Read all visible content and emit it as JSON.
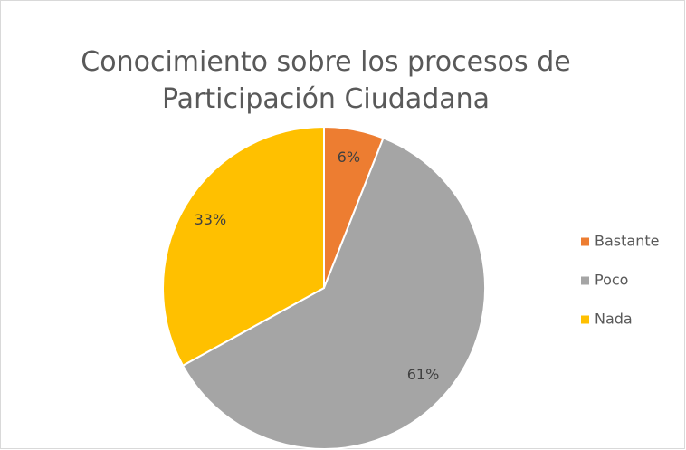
{
  "chart_data": {
    "type": "pie",
    "title": "Conocimiento sobre los procesos de Participación Ciudadana",
    "categories": [
      "Bastante",
      "Poco",
      "Nada"
    ],
    "values": [
      6,
      61,
      33
    ],
    "value_labels": [
      "6%",
      "61%",
      "33%"
    ],
    "colors": [
      "#ed7d31",
      "#a5a5a5",
      "#ffc000"
    ],
    "legend": "right"
  }
}
